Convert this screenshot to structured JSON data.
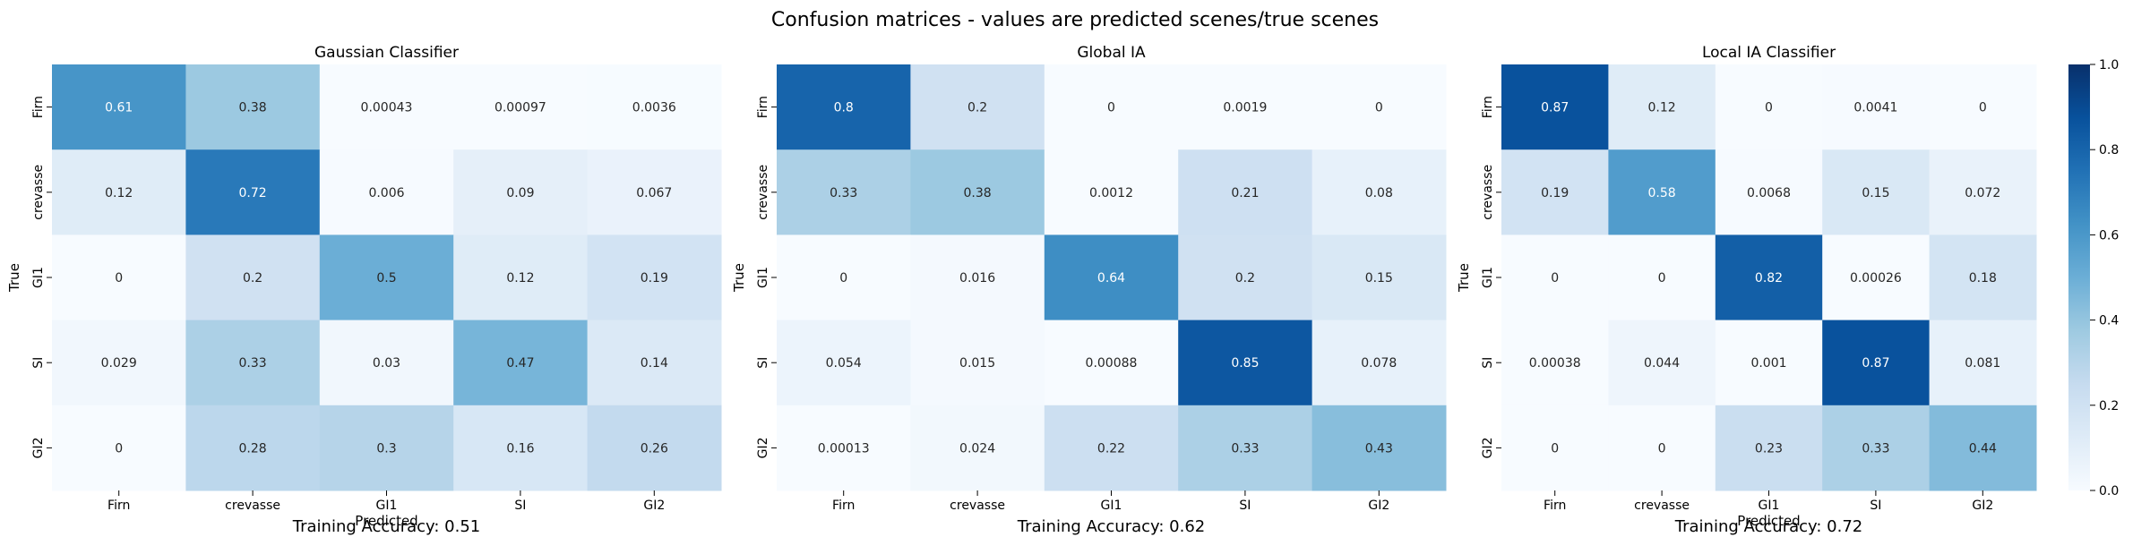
{
  "figure_title": "Confusion matrices - values are predicted scenes/true scenes",
  "colormap": {
    "name": "Blues",
    "min": 0,
    "max": 1,
    "ticks": [
      "0.0",
      "0.2",
      "0.4",
      "0.6",
      "0.8",
      "1.0"
    ],
    "stops": [
      "#f7fbff",
      "#deebf7",
      "#c6dbef",
      "#9ecae1",
      "#6baed6",
      "#4292c6",
      "#2171b5",
      "#08519c",
      "#08306b"
    ]
  },
  "chart_data": [
    {
      "type": "heatmap",
      "title": "Gaussian Classifier",
      "xlabel": "Predicted",
      "ylabel": "True",
      "categories": [
        "Firn",
        "crevasse",
        "GI1",
        "SI",
        "GI2"
      ],
      "values": [
        [
          0.61,
          0.38,
          0.00043,
          0.00097,
          0.0036
        ],
        [
          0.12,
          0.72,
          0.006,
          0.09,
          0.067
        ],
        [
          0,
          0.2,
          0.5,
          0.12,
          0.19
        ],
        [
          0.029,
          0.33,
          0.03,
          0.47,
          0.14
        ],
        [
          0,
          0.28,
          0.3,
          0.16,
          0.26
        ]
      ],
      "labels": [
        [
          "0.61",
          "0.38",
          "0.00043",
          "0.00097",
          "0.0036"
        ],
        [
          "0.12",
          "0.72",
          "0.006",
          "0.09",
          "0.067"
        ],
        [
          "0",
          "0.2",
          "0.5",
          "0.12",
          "0.19"
        ],
        [
          "0.029",
          "0.33",
          "0.03",
          "0.47",
          "0.14"
        ],
        [
          "0",
          "0.28",
          "0.3",
          "0.16",
          "0.26"
        ]
      ],
      "footer": "Training Accuracy: 0.51"
    },
    {
      "type": "heatmap",
      "title": "Global IA",
      "xlabel": "",
      "ylabel": "True",
      "categories": [
        "Firn",
        "crevasse",
        "GI1",
        "SI",
        "GI2"
      ],
      "values": [
        [
          0.8,
          0.2,
          0,
          0.0019,
          0
        ],
        [
          0.33,
          0.38,
          0.0012,
          0.21,
          0.08
        ],
        [
          0,
          0.016,
          0.64,
          0.2,
          0.15
        ],
        [
          0.054,
          0.015,
          0.00088,
          0.85,
          0.078
        ],
        [
          0.00013,
          0.024,
          0.22,
          0.33,
          0.43
        ]
      ],
      "labels": [
        [
          "0.8",
          "0.2",
          "0",
          "0.0019",
          "0"
        ],
        [
          "0.33",
          "0.38",
          "0.0012",
          "0.21",
          "0.08"
        ],
        [
          "0",
          "0.016",
          "0.64",
          "0.2",
          "0.15"
        ],
        [
          "0.054",
          "0.015",
          "0.00088",
          "0.85",
          "0.078"
        ],
        [
          "0.00013",
          "0.024",
          "0.22",
          "0.33",
          "0.43"
        ]
      ],
      "footer": "Training Accuracy: 0.62"
    },
    {
      "type": "heatmap",
      "title": "Local IA Classifier",
      "xlabel": "Predicted",
      "ylabel": "True",
      "categories": [
        "Firn",
        "crevasse",
        "GI1",
        "SI",
        "GI2"
      ],
      "values": [
        [
          0.87,
          0.12,
          0,
          0.0041,
          0
        ],
        [
          0.19,
          0.58,
          0.0068,
          0.15,
          0.072
        ],
        [
          0,
          0,
          0.82,
          0.00026,
          0.18
        ],
        [
          0.00038,
          0.044,
          0.001,
          0.87,
          0.081
        ],
        [
          0,
          0,
          0.23,
          0.33,
          0.44
        ]
      ],
      "labels": [
        [
          "0.87",
          "0.12",
          "0",
          "0.0041",
          "0"
        ],
        [
          "0.19",
          "0.58",
          "0.0068",
          "0.15",
          "0.072"
        ],
        [
          "0",
          "0",
          "0.82",
          "0.00026",
          "0.18"
        ],
        [
          "0.00038",
          "0.044",
          "0.001",
          "0.87",
          "0.081"
        ],
        [
          "0",
          "0",
          "0.23",
          "0.33",
          "0.44"
        ]
      ],
      "footer": "Training Accuracy: 0.72"
    }
  ]
}
